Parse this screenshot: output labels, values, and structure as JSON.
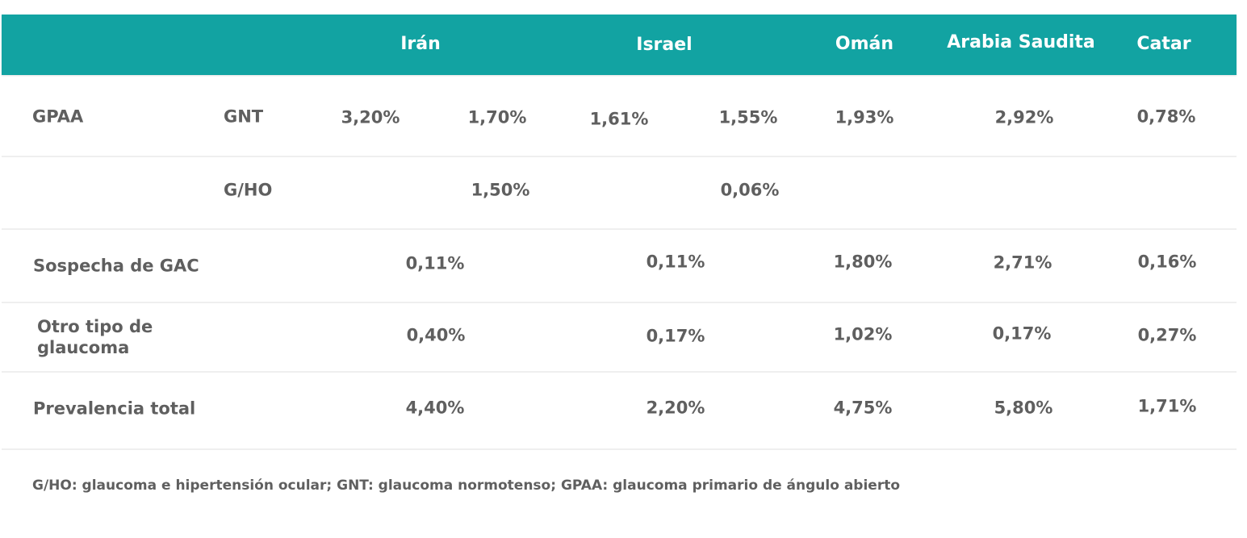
{
  "header": {
    "columns": [
      "Irán",
      "Israel",
      "Omán",
      "Arabia Saudita",
      "Catar"
    ]
  },
  "rows": {
    "gpaa": {
      "label": "GPAA",
      "gnt": {
        "sublabel": "GNT",
        "values": [
          "3,20%",
          "1,70%",
          "1,61%",
          "1,55%",
          "1,93%",
          "2,92%",
          "0,78%"
        ]
      },
      "gho": {
        "sublabel": "G/HO",
        "values": [
          "1,50%",
          "0,06%"
        ]
      }
    },
    "sospecha": {
      "label": "Sospecha de GAC",
      "values": [
        "0,11%",
        "0,11%",
        "1,80%",
        "2,71%",
        "0,16%"
      ]
    },
    "otro": {
      "label": "Otro tipo de glaucoma",
      "values": [
        "0,40%",
        "0,17%",
        "1,02%",
        "0,17%",
        "0,27%"
      ]
    },
    "total": {
      "label": "Prevalencia total",
      "values": [
        "4,40%",
        "2,20%",
        "4,75%",
        "5,80%",
        "1,71%"
      ]
    }
  },
  "footnote": "G/HO: glaucoma e hipertensión ocular; GNT: glaucoma normotenso; GPAA: glaucoma primario de ángulo abierto",
  "colors": {
    "header_bg": "#12a3a2",
    "header_text": "#ffffff",
    "body_text": "#5f5f5f",
    "divider": "#efefef"
  }
}
